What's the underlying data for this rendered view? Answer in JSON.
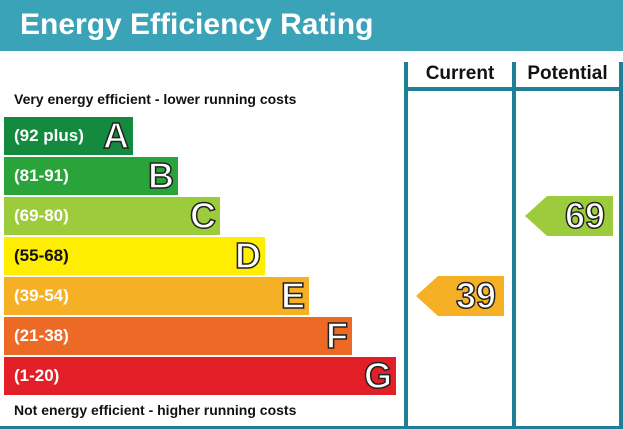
{
  "title": "Energy Efficiency Rating",
  "columns": {
    "current": "Current",
    "potential": "Potential"
  },
  "captions": {
    "top": "Very energy efficient - lower running costs",
    "bottom": "Not energy efficient - higher running costs"
  },
  "chart_data": {
    "type": "bar",
    "title": "Energy Efficiency Rating",
    "bands": [
      {
        "range": "(92 plus)",
        "letter": "A",
        "color": "#138a3e"
      },
      {
        "range": "(81-91)",
        "letter": "B",
        "color": "#29a33a"
      },
      {
        "range": "(69-80)",
        "letter": "C",
        "color": "#9ccb3b"
      },
      {
        "range": "(55-68)",
        "letter": "D",
        "color": "#ffee00"
      },
      {
        "range": "(39-54)",
        "letter": "E",
        "color": "#f6b026"
      },
      {
        "range": "(21-38)",
        "letter": "F",
        "color": "#ec6a26"
      },
      {
        "range": "(1-20)",
        "letter": "G",
        "color": "#e21f26"
      }
    ],
    "current": {
      "value": 39,
      "band": "E",
      "color": "#f6b026"
    },
    "potential": {
      "value": 69,
      "band": "C",
      "color": "#9ccb3b"
    }
  }
}
